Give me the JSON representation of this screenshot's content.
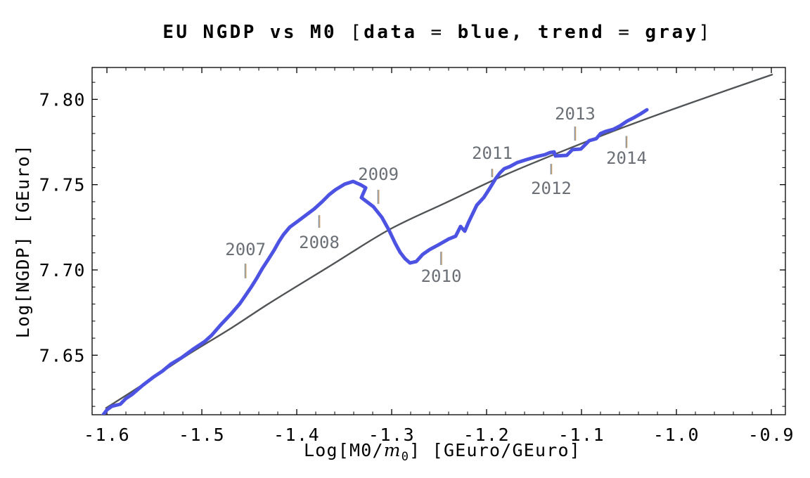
{
  "title": {
    "text": "EU NGDP vs M0 [data = blue, trend = gray]",
    "segments": [
      {
        "t": "EU NGDP vs M0 ",
        "b": true
      },
      {
        "t": "[",
        "l": true
      },
      {
        "t": "data",
        "b": true
      },
      {
        "t": " = ",
        "l": true
      },
      {
        "t": "blue, trend",
        "b": true
      },
      {
        "t": " = ",
        "l": true
      },
      {
        "t": "gray",
        "b": true
      },
      {
        "t": "]",
        "l": true
      }
    ]
  },
  "colors": {
    "data_line": "#4c52e2",
    "trend_line": "#515456",
    "annotation_text": "#6b7076",
    "annotation_tick_left": "#7c8698",
    "annotation_tick_right": "#bf9a64",
    "axis": "#000000",
    "background": "#ffffff"
  },
  "x_axis": {
    "label_segments": [
      {
        "t": "Log"
      },
      {
        "t": "[",
        "l": true
      },
      {
        "t": "M0"
      },
      {
        "t": "/",
        "l": true
      },
      {
        "t": "m",
        "i": true
      },
      {
        "t": "0",
        "s": true
      },
      {
        "t": "]",
        "l": true
      },
      {
        "t": " "
      },
      {
        "t": "[",
        "l": true
      },
      {
        "t": "GEuro"
      },
      {
        "t": "/",
        "l": true
      },
      {
        "t": "GEuro"
      },
      {
        "t": "]",
        "l": true
      }
    ],
    "major_ticks": [
      {
        "v": -1.6,
        "label": "-1.6"
      },
      {
        "v": -1.5,
        "label": "-1.5"
      },
      {
        "v": -1.4,
        "label": "-1.4"
      },
      {
        "v": -1.3,
        "label": "-1.3"
      },
      {
        "v": -1.2,
        "label": "-1.2"
      },
      {
        "v": -1.1,
        "label": "-1.1"
      },
      {
        "v": -1.0,
        "label": "-1.0"
      },
      {
        "v": -0.9,
        "label": "-0.9"
      }
    ],
    "minor_step": 0.02
  },
  "y_axis": {
    "label_segments": [
      {
        "t": "Log"
      },
      {
        "t": "[",
        "l": true
      },
      {
        "t": "NGDP"
      },
      {
        "t": "]",
        "l": true
      },
      {
        "t": " "
      },
      {
        "t": "[",
        "l": true
      },
      {
        "t": "GEuro"
      },
      {
        "t": "]",
        "l": true
      }
    ],
    "major_ticks": [
      {
        "v": 7.65,
        "label": "7.65"
      },
      {
        "v": 7.7,
        "label": "7.70"
      },
      {
        "v": 7.75,
        "label": "7.75"
      },
      {
        "v": 7.8,
        "label": "7.80"
      }
    ],
    "minor_step": 0.01
  },
  "chart_data": {
    "type": "line",
    "title": "EU NGDP vs M0 [data = blue, trend = gray]",
    "xlabel": "Log[M0/m0] [GEuro/GEuro]",
    "ylabel": "Log[NGDP] [GEuro]",
    "xlim": [
      -1.6156,
      -0.8852
    ],
    "ylim": [
      7.6151,
      7.8187
    ],
    "grid": false,
    "legend": "none (colors stated in title)",
    "series": [
      {
        "name": "data",
        "color_key": "data_line",
        "style": "thick quarterly polyline",
        "points": [
          [
            -1.6044,
            7.6147
          ],
          [
            -1.6,
            7.618
          ],
          [
            -1.5948,
            7.6201
          ],
          [
            -1.5859,
            7.6213
          ],
          [
            -1.58,
            7.6246
          ],
          [
            -1.5733,
            7.6271
          ],
          [
            -1.5622,
            7.6324
          ],
          [
            -1.5504,
            7.6374
          ],
          [
            -1.5415,
            7.6407
          ],
          [
            -1.5326,
            7.6448
          ],
          [
            -1.5215,
            7.6485
          ],
          [
            -1.5096,
            7.6534
          ],
          [
            -1.497,
            7.658
          ],
          [
            -1.4896,
            7.6617
          ],
          [
            -1.48,
            7.6679
          ],
          [
            -1.4696,
            7.674
          ],
          [
            -1.46,
            7.6802
          ],
          [
            -1.4533,
            7.6856
          ],
          [
            -1.4474,
            7.6905
          ],
          [
            -1.4422,
            7.6951
          ],
          [
            -1.4363,
            7.7008
          ],
          [
            -1.4304,
            7.7058
          ],
          [
            -1.4244,
            7.7111
          ],
          [
            -1.4185,
            7.7169
          ],
          [
            -1.4141,
            7.7206
          ],
          [
            -1.4074,
            7.7251
          ],
          [
            -1.3993,
            7.7284
          ],
          [
            -1.3904,
            7.7321
          ],
          [
            -1.3815,
            7.7358
          ],
          [
            -1.3733,
            7.74
          ],
          [
            -1.3659,
            7.7441
          ],
          [
            -1.3593,
            7.747
          ],
          [
            -1.3496,
            7.7503
          ],
          [
            -1.3407,
            7.7519
          ],
          [
            -1.3326,
            7.7499
          ],
          [
            -1.3274,
            7.7482
          ],
          [
            -1.3319,
            7.7424
          ],
          [
            -1.3193,
            7.7371
          ],
          [
            -1.3104,
            7.7309
          ],
          [
            -1.303,
            7.7235
          ],
          [
            -1.2963,
            7.7157
          ],
          [
            -1.2911,
            7.7103
          ],
          [
            -1.2859,
            7.7066
          ],
          [
            -1.2807,
            7.7041
          ],
          [
            -1.2741,
            7.7049
          ],
          [
            -1.2674,
            7.7091
          ],
          [
            -1.26,
            7.7119
          ],
          [
            -1.2504,
            7.7148
          ],
          [
            -1.24,
            7.7181
          ],
          [
            -1.2326,
            7.7198
          ],
          [
            -1.2274,
            7.7255
          ],
          [
            -1.223,
            7.7227
          ],
          [
            -1.2193,
            7.7276
          ],
          [
            -1.2104,
            7.7379
          ],
          [
            -1.203,
            7.7424
          ],
          [
            -1.1963,
            7.7482
          ],
          [
            -1.1904,
            7.7536
          ],
          [
            -1.1859,
            7.7569
          ],
          [
            -1.1815,
            7.7593
          ],
          [
            -1.1756,
            7.7606
          ],
          [
            -1.1674,
            7.763
          ],
          [
            -1.1578,
            7.7647
          ],
          [
            -1.1481,
            7.7663
          ],
          [
            -1.1385,
            7.7676
          ],
          [
            -1.1333,
            7.7688
          ],
          [
            -1.1289,
            7.7692
          ],
          [
            -1.1274,
            7.7668
          ],
          [
            -1.1156,
            7.7672
          ],
          [
            -1.1096,
            7.7705
          ],
          [
            -1.1007,
            7.7709
          ],
          [
            -1.0919,
            7.7758
          ],
          [
            -1.0844,
            7.777
          ],
          [
            -1.08,
            7.7799
          ],
          [
            -1.0748,
            7.7812
          ],
          [
            -1.0667,
            7.7824
          ],
          [
            -1.0593,
            7.7845
          ],
          [
            -1.0519,
            7.7873
          ],
          [
            -1.0444,
            7.7894
          ],
          [
            -1.0378,
            7.7915
          ],
          [
            -1.0311,
            7.7939
          ]
        ]
      },
      {
        "name": "trend",
        "color_key": "trend_line",
        "style": "thin smooth curve",
        "points": [
          [
            -1.6015,
            7.6188
          ],
          [
            -1.5644,
            7.632
          ],
          [
            -1.5163,
            7.6497
          ],
          [
            -1.4681,
            7.6662
          ],
          [
            -1.4274,
            7.681
          ],
          [
            -1.3644,
            7.7025
          ],
          [
            -1.303,
            7.7235
          ],
          [
            -1.2422,
            7.7396
          ],
          [
            -1.1793,
            7.756
          ],
          [
            -1.1126,
            7.7713
          ],
          [
            -1.0459,
            7.7857
          ],
          [
            -0.9719,
            7.8005
          ],
          [
            -0.8985,
            7.8146
          ]
        ]
      }
    ],
    "annotations": [
      {
        "label": "2007",
        "x": -1.454,
        "label_y": 7.7119,
        "tick_y1": 7.7037,
        "tick_y2": 7.6951
      },
      {
        "label": "2008",
        "x": -1.3763,
        "label_y": 7.7161,
        "tick_y1": 7.7321,
        "tick_y2": 7.7247
      },
      {
        "label": "2009",
        "x": -1.314,
        "label_y": 7.756,
        "tick_y1": 7.747,
        "tick_y2": 7.7387
      },
      {
        "label": "2010",
        "x": -1.2478,
        "label_y": 7.6963,
        "tick_y1": 7.7107,
        "tick_y2": 7.7029
      },
      {
        "label": "2011",
        "x": -1.1941,
        "label_y": 7.7684,
        "tick_y1": 7.7593,
        "tick_y2": 7.7544
      },
      {
        "label": "2012",
        "x": -1.1319,
        "label_y": 7.7478,
        "tick_y1": 7.7622,
        "tick_y2": 7.756
      },
      {
        "label": "2013",
        "x": -1.1067,
        "label_y": 7.7915,
        "tick_y1": 7.7841,
        "tick_y2": 7.7758
      },
      {
        "label": "2014",
        "x": -1.0526,
        "label_y": 7.7655,
        "tick_y1": 7.7785,
        "tick_y2": 7.7715
      }
    ]
  }
}
